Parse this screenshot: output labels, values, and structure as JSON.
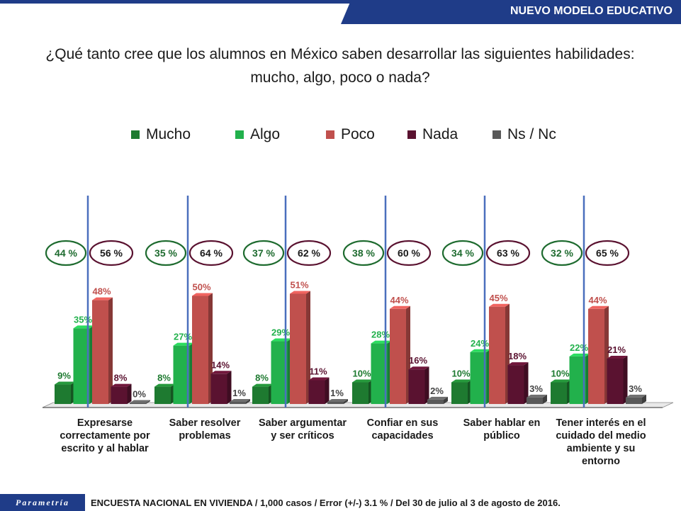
{
  "header": {
    "title": "NUEVO MODELO EDUCATIVO"
  },
  "question": {
    "line1": "¿Qué tanto cree que los alumnos en México saben desarrollar las siguientes habilidades:",
    "line2": "mucho, algo, poco o nada?"
  },
  "footer": {
    "brand": "Parametría",
    "text": "ENCUESTA NACIONAL EN VIVIENDA / 1,000 casos / Error (+/-) 3.1 % / Del 30 de julio al 3 de agosto de 2016."
  },
  "colors": {
    "mucho": "#1e7a30",
    "algo": "#22b14c",
    "poco": "#c0504d",
    "nada": "#5a1230",
    "nsnc": "#595959",
    "brand": "#1f3c88"
  },
  "chart_data": {
    "type": "bar",
    "categories": [
      "Expresarse correctamente por escrito y al hablar",
      "Saber resolver problemas",
      "Saber argumentar y ser críticos",
      "Confiar en sus capacidades",
      "Saber hablar en público",
      "Tener interés en el cuidado del medio ambiente y su entorno"
    ],
    "category_lines": [
      [
        "Expresarse",
        "correctamente por",
        "escrito y al hablar"
      ],
      [
        "Saber resolver",
        "problemas"
      ],
      [
        "Saber argumentar",
        "y ser críticos"
      ],
      [
        "Confiar en sus",
        "capacidades"
      ],
      [
        "Saber hablar en",
        "público"
      ],
      [
        "Tener interés en el",
        "cuidado del medio",
        "ambiente y su",
        "entorno"
      ]
    ],
    "series": [
      {
        "name": "Mucho",
        "color": "#1e7a30",
        "values": [
          9,
          8,
          8,
          10,
          10,
          10
        ]
      },
      {
        "name": "Algo",
        "color": "#22b14c",
        "values": [
          35,
          27,
          29,
          28,
          24,
          22
        ]
      },
      {
        "name": "Poco",
        "color": "#c0504d",
        "values": [
          48,
          50,
          51,
          44,
          45,
          44
        ]
      },
      {
        "name": "Nada",
        "color": "#5a1230",
        "values": [
          8,
          14,
          11,
          16,
          18,
          21
        ]
      },
      {
        "name": "Ns / Nc",
        "color": "#595959",
        "values": [
          0,
          1,
          1,
          2,
          3,
          3
        ]
      }
    ],
    "positive_totals": [
      "44 %",
      "35 %",
      "37 %",
      "38 %",
      "34 %",
      "32 %"
    ],
    "negative_totals": [
      "56 %",
      "64 %",
      "62 %",
      "60 %",
      "63 %",
      "65 %"
    ],
    "unit": "%",
    "ylim": [
      0,
      100
    ],
    "legend_position": "top"
  }
}
